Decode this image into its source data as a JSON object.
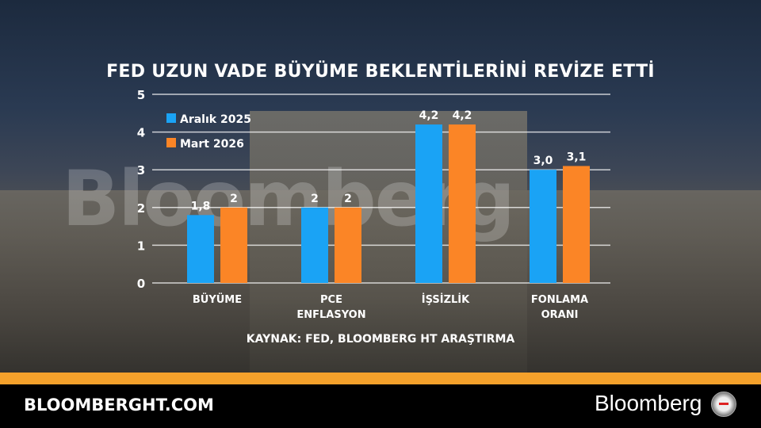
{
  "title": "FED UZUN VADE BÜYÜME BEKLENTİLERİNİ REVİZE ETTİ",
  "watermark": "Bloomberg",
  "source": "KAYNAK: FED, BLOOMBERG HT ARAŞTIRMA",
  "footer": {
    "site": "BLOOMBERGHT.COM",
    "brand": "Bloomberg"
  },
  "chart_data": {
    "type": "bar",
    "title": "FED UZUN VADE BÜYÜME BEKLENTİLERİNİ REVİZE ETTİ",
    "categories": [
      [
        "BÜYÜME"
      ],
      [
        "PCE",
        "ENFLASYON"
      ],
      [
        "İŞSİZLİK"
      ],
      [
        "FONLAMA",
        "ORANI"
      ]
    ],
    "series": [
      {
        "name": "Aralık 2025",
        "color": "#1aa3f5",
        "values": [
          1.8,
          2,
          4.2,
          3.0
        ],
        "labels": [
          "1,8",
          "2",
          "4,2",
          "3,0"
        ]
      },
      {
        "name": "Mart 2026",
        "color": "#fb8526",
        "values": [
          2,
          2,
          4.2,
          3.1
        ],
        "labels": [
          "2",
          "2",
          "4,2",
          "3,1"
        ]
      }
    ],
    "ylim": [
      0,
      5
    ],
    "yticks": [
      0,
      1,
      2,
      3,
      4,
      5
    ],
    "grid": true,
    "legend": "top-left"
  }
}
